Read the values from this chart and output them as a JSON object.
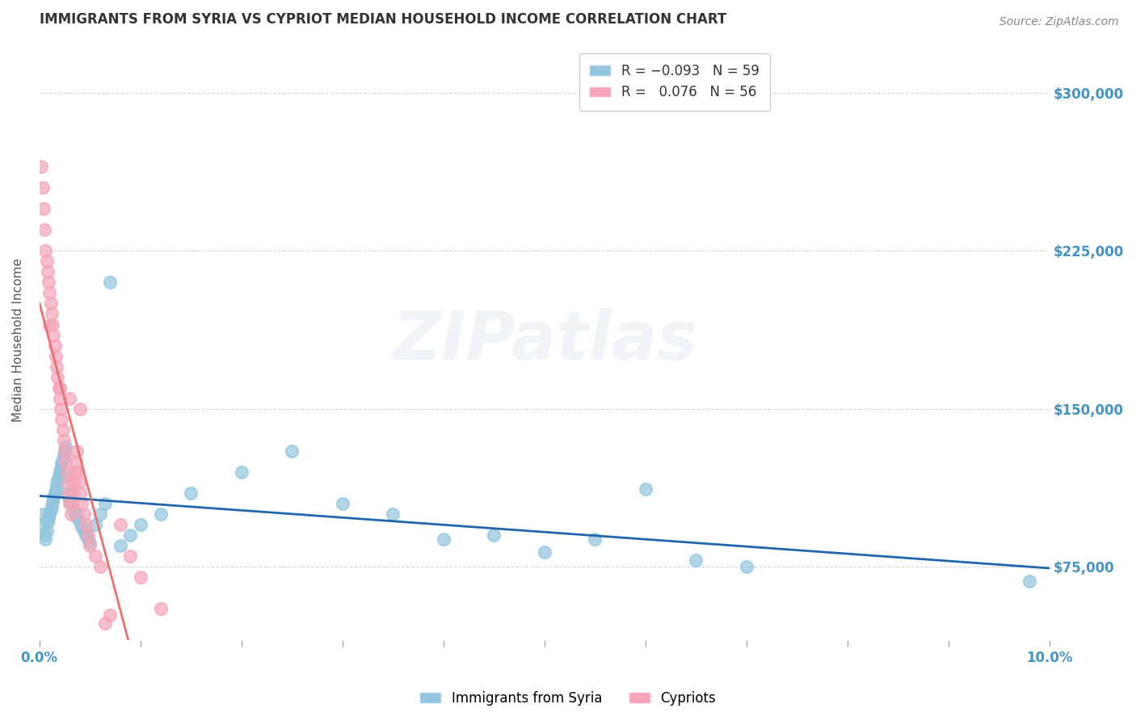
{
  "title": "IMMIGRANTS FROM SYRIA VS CYPRIOT MEDIAN HOUSEHOLD INCOME CORRELATION CHART",
  "source": "Source: ZipAtlas.com",
  "ylabel": "Median Household Income",
  "xlim": [
    0.0,
    10.0
  ],
  "ylim": [
    40000,
    325000
  ],
  "y_ticks": [
    75000,
    150000,
    225000,
    300000
  ],
  "y_tick_labels": [
    "$75,000",
    "$150,000",
    "$225,000",
    "$300,000"
  ],
  "color_syria": "#92c5de",
  "color_cyprus": "#f4a5b8",
  "color_trend_syria": "#2166ac",
  "color_trend_cyprus": "#d6604d",
  "color_right_labels": "#4393c3",
  "background_color": "#ffffff",
  "grid_color": "#cccccc",
  "watermark_text": "ZIPatlas",
  "series1_name": "Immigrants from Syria",
  "series2_name": "Cypriots",
  "syria_x": [
    0.03,
    0.04,
    0.05,
    0.06,
    0.07,
    0.08,
    0.09,
    0.1,
    0.11,
    0.12,
    0.13,
    0.14,
    0.15,
    0.16,
    0.17,
    0.18,
    0.19,
    0.2,
    0.21,
    0.22,
    0.23,
    0.24,
    0.25,
    0.26,
    0.27,
    0.28,
    0.29,
    0.3,
    0.32,
    0.34,
    0.36,
    0.38,
    0.4,
    0.42,
    0.44,
    0.46,
    0.48,
    0.5,
    0.55,
    0.6,
    0.65,
    0.7,
    0.8,
    0.9,
    1.0,
    1.2,
    1.5,
    2.0,
    2.5,
    3.0,
    3.5,
    4.0,
    4.5,
    5.0,
    5.5,
    6.0,
    6.5,
    7.0,
    9.8
  ],
  "syria_y": [
    100000,
    95000,
    90000,
    88000,
    92000,
    96000,
    98000,
    100000,
    102000,
    104000,
    106000,
    108000,
    110000,
    112000,
    114000,
    116000,
    118000,
    120000,
    122000,
    124000,
    126000,
    128000,
    130000,
    132000,
    118000,
    110000,
    108000,
    106000,
    104000,
    102000,
    100000,
    98000,
    96000,
    94000,
    92000,
    90000,
    88000,
    86000,
    95000,
    100000,
    105000,
    210000,
    85000,
    90000,
    95000,
    100000,
    110000,
    120000,
    130000,
    105000,
    100000,
    88000,
    90000,
    82000,
    88000,
    112000,
    78000,
    75000,
    68000
  ],
  "cyprus_x": [
    0.02,
    0.03,
    0.04,
    0.05,
    0.06,
    0.07,
    0.08,
    0.09,
    0.1,
    0.11,
    0.12,
    0.13,
    0.14,
    0.15,
    0.16,
    0.17,
    0.18,
    0.19,
    0.2,
    0.21,
    0.22,
    0.23,
    0.24,
    0.25,
    0.26,
    0.27,
    0.28,
    0.29,
    0.3,
    0.31,
    0.32,
    0.33,
    0.34,
    0.35,
    0.36,
    0.37,
    0.38,
    0.39,
    0.4,
    0.42,
    0.44,
    0.46,
    0.48,
    0.5,
    0.55,
    0.6,
    0.65,
    0.7,
    0.8,
    0.9,
    1.0,
    1.2,
    0.1,
    0.2,
    0.3,
    0.4
  ],
  "cyprus_y": [
    265000,
    255000,
    245000,
    235000,
    225000,
    220000,
    215000,
    210000,
    205000,
    200000,
    195000,
    190000,
    185000,
    180000,
    175000,
    170000,
    165000,
    160000,
    155000,
    150000,
    145000,
    140000,
    135000,
    130000,
    125000,
    120000,
    115000,
    110000,
    105000,
    100000,
    105000,
    110000,
    115000,
    120000,
    125000,
    130000,
    120000,
    115000,
    110000,
    105000,
    100000,
    95000,
    90000,
    85000,
    80000,
    75000,
    48000,
    52000,
    95000,
    80000,
    70000,
    55000,
    190000,
    160000,
    155000,
    150000
  ],
  "x_tick_positions": [
    0,
    1,
    2,
    3,
    4,
    5,
    6,
    7,
    8,
    9,
    10
  ],
  "x_tick_label_left": "0.0%",
  "x_tick_label_right": "10.0%"
}
